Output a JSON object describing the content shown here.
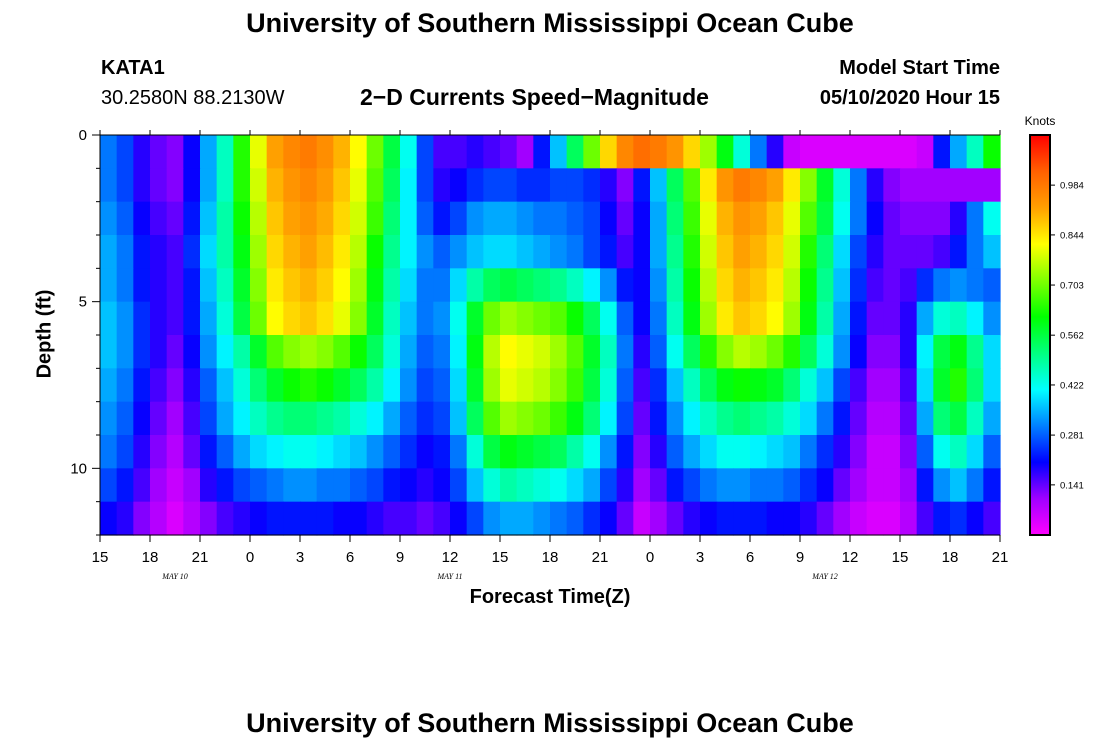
{
  "header": {
    "title": "University of Southern Mississippi Ocean Cube",
    "footer_title": "University of Southern Mississippi Ocean Cube",
    "station": "KATA1",
    "coordinates": "30.2580N 88.2130W",
    "subtitle": "2−D Currents Speed−Magnitude",
    "model_start_label": "Model Start Time",
    "model_start_value": "05/10/2020 Hour 15"
  },
  "chart_data": {
    "type": "heatmap",
    "title": "2−D Currents Speed−Magnitude",
    "xlabel": "Forecast Time(Z)",
    "ylabel": "Depth (ft)",
    "x_hours_from_start": [
      0,
      54
    ],
    "x_ticks": [
      "15",
      "18",
      "21",
      "0",
      "3",
      "6",
      "9",
      "12",
      "15",
      "18",
      "21",
      "0",
      "3",
      "6",
      "9",
      "12",
      "15",
      "18",
      "21"
    ],
    "date_labels": [
      {
        "label": "MAY 10",
        "hour": 4.5
      },
      {
        "label": "MAY 11",
        "hour": 21
      },
      {
        "label": "MAY 12",
        "hour": 43.5
      }
    ],
    "y_ticks": [
      0,
      5,
      10
    ],
    "ylim": [
      0,
      12
    ],
    "depth_levels_ft": [
      0.5,
      1.5,
      2.5,
      3.5,
      4.5,
      5.5,
      6.5,
      7.5,
      8.5,
      9.5,
      10.5,
      11.5
    ],
    "colorbar": {
      "unit_label": "Knots",
      "range": [
        0,
        1.125
      ],
      "tick_values": [
        "0.984",
        "0.844",
        "0.703",
        "0.562",
        "0.422",
        "0.281",
        "0.141"
      ]
    },
    "hour_columns": [
      0,
      1,
      2,
      3,
      4,
      5,
      6,
      7,
      8,
      9,
      10,
      11,
      12,
      13,
      14,
      15,
      16,
      17,
      18,
      19,
      20,
      21,
      22,
      23,
      24,
      25,
      26,
      27,
      28,
      29,
      30,
      31,
      32,
      33,
      34,
      35,
      36,
      37,
      38,
      39,
      40,
      41,
      42,
      43,
      44,
      45,
      46,
      47,
      48,
      49,
      50,
      51,
      52,
      53
    ],
    "speed_knots_by_depth": [
      [
        0.3,
        0.26,
        0.18,
        0.14,
        0.12,
        0.2,
        0.34,
        0.46,
        0.64,
        0.8,
        0.92,
        0.96,
        0.98,
        0.95,
        0.9,
        0.82,
        0.7,
        0.56,
        0.42,
        0.26,
        0.16,
        0.16,
        0.18,
        0.16,
        0.14,
        0.1,
        0.22,
        0.36,
        0.54,
        0.7,
        0.86,
        0.96,
        1.0,
        0.98,
        0.94,
        0.86,
        0.74,
        0.6,
        0.44,
        0.3,
        0.18,
        0.06,
        0.04,
        0.04,
        0.04,
        0.04,
        0.04,
        0.04,
        0.04,
        0.06,
        0.22,
        0.34,
        0.46,
        0.62
      ],
      [
        0.3,
        0.26,
        0.18,
        0.14,
        0.12,
        0.2,
        0.34,
        0.46,
        0.64,
        0.78,
        0.9,
        0.94,
        0.96,
        0.93,
        0.88,
        0.8,
        0.68,
        0.54,
        0.4,
        0.26,
        0.18,
        0.2,
        0.24,
        0.26,
        0.26,
        0.24,
        0.24,
        0.26,
        0.26,
        0.24,
        0.18,
        0.12,
        0.22,
        0.36,
        0.54,
        0.68,
        0.84,
        0.94,
        0.98,
        0.96,
        0.92,
        0.84,
        0.72,
        0.58,
        0.44,
        0.3,
        0.18,
        0.12,
        0.1,
        0.1,
        0.1,
        0.1,
        0.1,
        0.1
      ],
      [
        0.32,
        0.28,
        0.2,
        0.16,
        0.14,
        0.22,
        0.36,
        0.48,
        0.62,
        0.76,
        0.88,
        0.92,
        0.94,
        0.91,
        0.86,
        0.78,
        0.66,
        0.52,
        0.4,
        0.28,
        0.22,
        0.26,
        0.32,
        0.34,
        0.34,
        0.32,
        0.3,
        0.3,
        0.28,
        0.26,
        0.2,
        0.14,
        0.2,
        0.34,
        0.52,
        0.66,
        0.8,
        0.9,
        0.94,
        0.92,
        0.88,
        0.8,
        0.68,
        0.56,
        0.42,
        0.3,
        0.2,
        0.14,
        0.12,
        0.12,
        0.12,
        0.18,
        0.3,
        0.42
      ],
      [
        0.34,
        0.3,
        0.22,
        0.18,
        0.16,
        0.24,
        0.38,
        0.48,
        0.6,
        0.74,
        0.86,
        0.9,
        0.92,
        0.89,
        0.84,
        0.76,
        0.62,
        0.5,
        0.4,
        0.32,
        0.28,
        0.32,
        0.36,
        0.38,
        0.38,
        0.36,
        0.34,
        0.32,
        0.3,
        0.26,
        0.22,
        0.16,
        0.2,
        0.34,
        0.5,
        0.64,
        0.78,
        0.88,
        0.92,
        0.9,
        0.86,
        0.78,
        0.64,
        0.52,
        0.38,
        0.26,
        0.18,
        0.14,
        0.14,
        0.14,
        0.16,
        0.22,
        0.3,
        0.36
      ],
      [
        0.34,
        0.3,
        0.22,
        0.18,
        0.16,
        0.22,
        0.36,
        0.46,
        0.58,
        0.72,
        0.84,
        0.88,
        0.9,
        0.87,
        0.82,
        0.74,
        0.6,
        0.48,
        0.38,
        0.3,
        0.3,
        0.38,
        0.48,
        0.54,
        0.56,
        0.54,
        0.52,
        0.5,
        0.46,
        0.4,
        0.32,
        0.22,
        0.2,
        0.32,
        0.48,
        0.62,
        0.76,
        0.86,
        0.9,
        0.88,
        0.84,
        0.76,
        0.62,
        0.5,
        0.36,
        0.24,
        0.16,
        0.14,
        0.16,
        0.24,
        0.3,
        0.32,
        0.3,
        0.28
      ],
      [
        0.36,
        0.32,
        0.24,
        0.18,
        0.16,
        0.22,
        0.34,
        0.44,
        0.56,
        0.7,
        0.82,
        0.86,
        0.88,
        0.85,
        0.8,
        0.72,
        0.58,
        0.46,
        0.36,
        0.3,
        0.32,
        0.42,
        0.58,
        0.7,
        0.74,
        0.72,
        0.7,
        0.68,
        0.62,
        0.54,
        0.42,
        0.28,
        0.2,
        0.3,
        0.46,
        0.6,
        0.74,
        0.84,
        0.88,
        0.86,
        0.82,
        0.74,
        0.6,
        0.48,
        0.34,
        0.22,
        0.14,
        0.14,
        0.18,
        0.34,
        0.44,
        0.46,
        0.4,
        0.32
      ],
      [
        0.36,
        0.32,
        0.24,
        0.18,
        0.14,
        0.2,
        0.32,
        0.4,
        0.48,
        0.58,
        0.68,
        0.72,
        0.74,
        0.72,
        0.68,
        0.62,
        0.54,
        0.44,
        0.34,
        0.28,
        0.3,
        0.4,
        0.6,
        0.76,
        0.82,
        0.8,
        0.78,
        0.74,
        0.68,
        0.58,
        0.46,
        0.3,
        0.18,
        0.28,
        0.42,
        0.54,
        0.64,
        0.72,
        0.76,
        0.74,
        0.7,
        0.64,
        0.54,
        0.44,
        0.32,
        0.2,
        0.12,
        0.12,
        0.18,
        0.4,
        0.56,
        0.6,
        0.5,
        0.38
      ],
      [
        0.34,
        0.3,
        0.22,
        0.16,
        0.12,
        0.18,
        0.28,
        0.36,
        0.44,
        0.52,
        0.58,
        0.62,
        0.64,
        0.62,
        0.58,
        0.54,
        0.48,
        0.4,
        0.32,
        0.26,
        0.28,
        0.38,
        0.58,
        0.74,
        0.8,
        0.78,
        0.76,
        0.72,
        0.66,
        0.56,
        0.44,
        0.28,
        0.16,
        0.24,
        0.36,
        0.46,
        0.54,
        0.6,
        0.62,
        0.6,
        0.58,
        0.52,
        0.44,
        0.36,
        0.26,
        0.16,
        0.1,
        0.1,
        0.16,
        0.38,
        0.58,
        0.64,
        0.52,
        0.38
      ],
      [
        0.32,
        0.28,
        0.2,
        0.14,
        0.1,
        0.16,
        0.26,
        0.34,
        0.4,
        0.46,
        0.5,
        0.52,
        0.52,
        0.5,
        0.48,
        0.44,
        0.4,
        0.34,
        0.28,
        0.24,
        0.26,
        0.36,
        0.54,
        0.68,
        0.74,
        0.72,
        0.7,
        0.66,
        0.6,
        0.52,
        0.4,
        0.26,
        0.14,
        0.22,
        0.32,
        0.4,
        0.46,
        0.5,
        0.52,
        0.5,
        0.48,
        0.44,
        0.38,
        0.3,
        0.22,
        0.14,
        0.08,
        0.08,
        0.14,
        0.34,
        0.52,
        0.56,
        0.46,
        0.34
      ],
      [
        0.3,
        0.26,
        0.18,
        0.12,
        0.08,
        0.14,
        0.22,
        0.28,
        0.34,
        0.38,
        0.4,
        0.42,
        0.42,
        0.4,
        0.38,
        0.36,
        0.32,
        0.28,
        0.24,
        0.2,
        0.22,
        0.3,
        0.44,
        0.56,
        0.6,
        0.58,
        0.56,
        0.54,
        0.48,
        0.42,
        0.32,
        0.22,
        0.12,
        0.18,
        0.28,
        0.34,
        0.38,
        0.42,
        0.42,
        0.4,
        0.38,
        0.36,
        0.3,
        0.24,
        0.18,
        0.12,
        0.06,
        0.06,
        0.12,
        0.28,
        0.42,
        0.46,
        0.38,
        0.28
      ],
      [
        0.26,
        0.22,
        0.16,
        0.1,
        0.06,
        0.1,
        0.18,
        0.22,
        0.26,
        0.28,
        0.3,
        0.32,
        0.32,
        0.3,
        0.3,
        0.28,
        0.26,
        0.22,
        0.2,
        0.18,
        0.2,
        0.26,
        0.36,
        0.44,
        0.48,
        0.46,
        0.44,
        0.42,
        0.38,
        0.34,
        0.26,
        0.18,
        0.1,
        0.14,
        0.22,
        0.26,
        0.3,
        0.32,
        0.32,
        0.3,
        0.3,
        0.28,
        0.24,
        0.2,
        0.14,
        0.1,
        0.06,
        0.06,
        0.1,
        0.22,
        0.32,
        0.36,
        0.3,
        0.22
      ],
      [
        0.2,
        0.18,
        0.12,
        0.08,
        0.04,
        0.08,
        0.12,
        0.16,
        0.18,
        0.2,
        0.22,
        0.22,
        0.22,
        0.22,
        0.2,
        0.2,
        0.18,
        0.16,
        0.16,
        0.14,
        0.16,
        0.2,
        0.26,
        0.32,
        0.34,
        0.34,
        0.32,
        0.3,
        0.28,
        0.24,
        0.2,
        0.14,
        0.06,
        0.1,
        0.14,
        0.18,
        0.2,
        0.22,
        0.22,
        0.22,
        0.2,
        0.2,
        0.18,
        0.14,
        0.1,
        0.06,
        0.04,
        0.04,
        0.08,
        0.16,
        0.22,
        0.24,
        0.2,
        0.16
      ]
    ]
  },
  "colors": {
    "scale": [
      "#ff00ff",
      "#a000ff",
      "#0000ff",
      "#0080ff",
      "#00ffff",
      "#00ff80",
      "#00ff00",
      "#80ff00",
      "#ffff00",
      "#ffa000",
      "#ff6000",
      "#ff0000"
    ]
  }
}
